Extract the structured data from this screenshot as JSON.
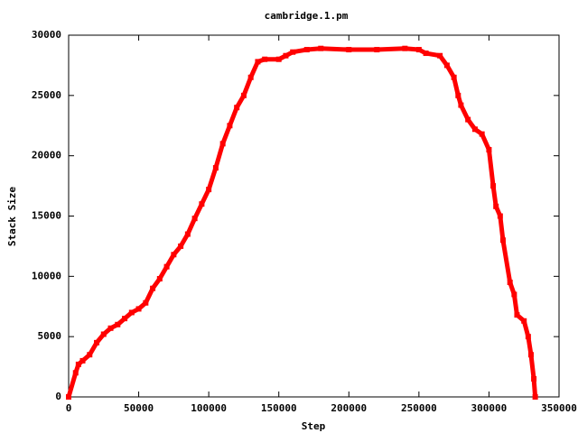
{
  "chart_data": {
    "type": "scatter",
    "title": "cambridge.1.pm",
    "x_label": "Step",
    "y_label": "Stack Size",
    "x": [
      0,
      5000,
      7000,
      10000,
      15000,
      20000,
      25000,
      30000,
      35000,
      40000,
      45000,
      50000,
      55000,
      60000,
      65000,
      70000,
      75000,
      80000,
      85000,
      90000,
      95000,
      100000,
      105000,
      110000,
      115000,
      120000,
      125000,
      130000,
      135000,
      140000,
      150000,
      155000,
      160000,
      170000,
      180000,
      200000,
      220000,
      240000,
      250000,
      255000,
      265000,
      270000,
      275000,
      278000,
      280000,
      285000,
      290000,
      295000,
      300000,
      303000,
      305000,
      308000,
      310000,
      315000,
      318000,
      320000,
      325000,
      328000,
      330000,
      332000,
      333000
    ],
    "values": [
      0,
      2000,
      2700,
      3000,
      3500,
      4500,
      5200,
      5700,
      6000,
      6500,
      7000,
      7300,
      7800,
      9000,
      9800,
      10800,
      11800,
      12500,
      13500,
      14800,
      16000,
      17200,
      19000,
      21000,
      22500,
      24000,
      25000,
      26500,
      27800,
      28000,
      28000,
      28300,
      28600,
      28800,
      28900,
      28800,
      28800,
      28900,
      28800,
      28500,
      28300,
      27500,
      26500,
      25000,
      24200,
      23000,
      22200,
      21800,
      20500,
      17500,
      15800,
      15000,
      13000,
      9500,
      8500,
      6800,
      6300,
      5000,
      3500,
      1500,
      0
    ],
    "color": "#ff0000",
    "xlim": [
      0,
      350000
    ],
    "xticks": [
      0,
      50000,
      100000,
      150000,
      200000,
      250000,
      300000,
      350000
    ],
    "ylim": [
      0,
      30000
    ],
    "yticks": [
      0,
      5000,
      10000,
      15000,
      20000,
      25000,
      30000
    ],
    "grid": false
  }
}
